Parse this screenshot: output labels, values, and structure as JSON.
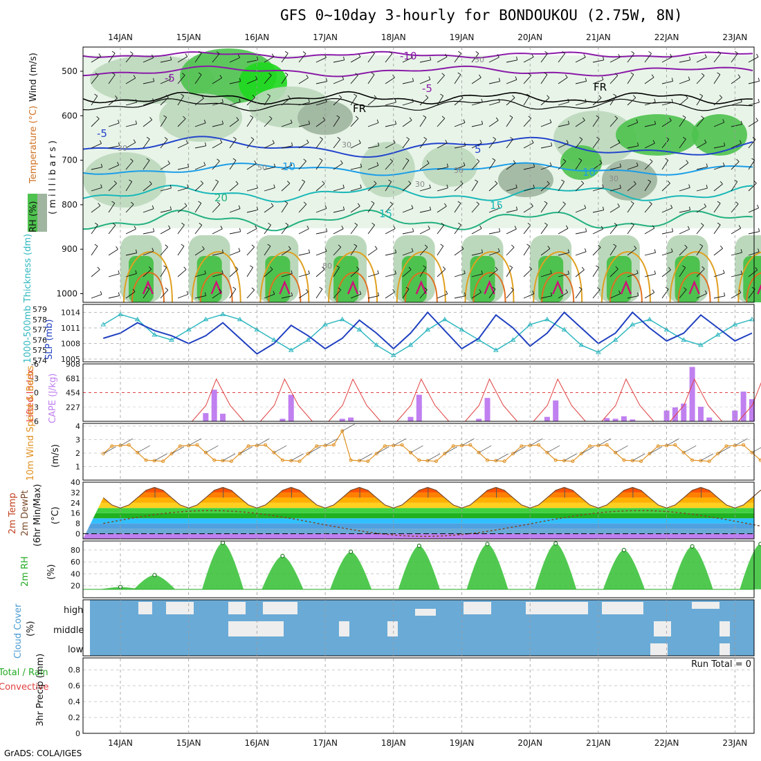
{
  "title": "GFS 0~10day 3-hourly for BONDOUKOU (2.75W, 8N)",
  "footer": "GrADS: COLA/IGES",
  "dates": [
    "14JAN",
    "15JAN",
    "16JAN",
    "17JAN",
    "18JAN",
    "19JAN",
    "20JAN",
    "21JAN",
    "22JAN",
    "23JAN"
  ],
  "colors": {
    "rh_light": "#e8f4e8",
    "rh_mid": "#bcd8bc",
    "rh_gray": "#9fb59f",
    "rh_dark": "#4ec24e",
    "rh_max": "#1ed81e",
    "temp_m10": "#8a1aa8",
    "temp_5": "#2244cc",
    "temp_10": "#1a9de8",
    "temp_15": "#18b8b8",
    "temp_20": "#22b080",
    "temp_25": "#e0a020",
    "temp_30": "#e07020",
    "temp_35": "#d0107a",
    "slp": "#2040c0",
    "thick": "#30b8c0",
    "cape": "#c080f0",
    "li": "#e04040",
    "wind10": "#e09020",
    "temp2m": "#7a4a2a",
    "rh2m": "#22aa22",
    "cloud": "#6aaad6"
  },
  "panels": {
    "upper": {
      "ylabel_rh": "RH (%)",
      "ylabel_temp": "Temperature (°C)",
      "ylabel_wind": "Wind (m/s)",
      "ylabel_mb": "( m i l l i b a r s )",
      "yticks": [
        "500",
        "600",
        "700",
        "800",
        "900",
        "1000"
      ],
      "contour_labels": [
        {
          "text": "-10",
          "color": "temp_m10"
        },
        {
          "text": "-5",
          "color": "temp_m10"
        },
        {
          "text": "-5",
          "color": "temp_m10"
        },
        {
          "text": "FR",
          "color": "black"
        },
        {
          "text": "FR",
          "color": "black"
        },
        {
          "text": "-5",
          "color": "temp_5"
        },
        {
          "text": "5",
          "color": "temp_5"
        },
        {
          "text": "10",
          "color": "temp_10"
        },
        {
          "text": "10",
          "color": "temp_10"
        },
        {
          "text": "15",
          "color": "temp_15"
        },
        {
          "text": "15",
          "color": "temp_15"
        },
        {
          "text": "20",
          "color": "temp_20"
        },
        {
          "text": "30",
          "color": "gray"
        },
        {
          "text": "30",
          "color": "gray"
        },
        {
          "text": "30",
          "color": "gray"
        },
        {
          "text": "30",
          "color": "gray"
        },
        {
          "text": "50",
          "color": "gray"
        },
        {
          "text": "50",
          "color": "gray"
        },
        {
          "text": "30",
          "color": "gray"
        },
        {
          "text": "80",
          "color": "gray"
        }
      ]
    },
    "slp": {
      "ylabel_thick": "1000-500mb Thickness (dm)",
      "ylabel_slp": "SLP (mb)",
      "yticks_thick": [
        "579",
        "578",
        "577",
        "576",
        "575",
        "574"
      ],
      "yticks_slp": [
        "1014",
        "1011",
        "1008",
        "1005"
      ]
    },
    "cape": {
      "ylabel_li": "Lifted Index",
      "ylabel_cape": "CAPE (J/kg)",
      "yticks_li": [
        "-6",
        "-3",
        "0",
        "3",
        "6"
      ],
      "yticks_cape": [
        "908",
        "681",
        "454",
        "227"
      ]
    },
    "wind10": {
      "ylabel": "10m Wind Speed & Barbs",
      "ylabel_unit": "(m/s)",
      "yticks": [
        "4",
        "3",
        "2",
        "1"
      ]
    },
    "temp2m": {
      "ylabel1": "2m Temp",
      "ylabel2": "2m DewPt",
      "ylabel3": "(6hr Min/Max)",
      "ylabel_unit": "(°C)",
      "yticks": [
        "40",
        "32",
        "24",
        "16",
        "8",
        "0"
      ]
    },
    "rh2m": {
      "ylabel": "2m RH",
      "ylabel_unit": "(%)",
      "yticks": [
        "80",
        "60",
        "40",
        "20"
      ]
    },
    "cloud": {
      "ylabel": "Cloud Cover",
      "ylabel_unit": "(%)",
      "levels": [
        "high",
        "middle",
        "low"
      ]
    },
    "precip": {
      "ylabel1": "Total / Rain",
      "ylabel2": "Convective",
      "ylabel3": "3hr Precip (mm)",
      "yticks": [
        "0.8",
        "0.6",
        "0.4",
        "0.2",
        "0"
      ],
      "run_total": "Run Total = 0"
    }
  },
  "chart_data": [
    {
      "type": "line",
      "title": "Sea level pressure & 1000-500mb thickness",
      "x": [
        "13JAN18",
        "14JAN00",
        "14JAN06",
        "14JAN12",
        "14JAN18",
        "15JAN00",
        "15JAN06",
        "15JAN12",
        "15JAN18",
        "16JAN00",
        "16JAN06",
        "16JAN12",
        "16JAN18",
        "17JAN00",
        "17JAN06",
        "17JAN12",
        "17JAN18",
        "18JAN00",
        "18JAN06",
        "18JAN12",
        "18JAN18",
        "19JAN00",
        "19JAN06",
        "19JAN12",
        "19JAN18",
        "20JAN00",
        "20JAN06",
        "20JAN12",
        "20JAN18",
        "21JAN00",
        "21JAN06",
        "21JAN12",
        "21JAN18",
        "22JAN00",
        "22JAN06",
        "22JAN12",
        "22JAN18",
        "23JAN00",
        "23JAN06"
      ],
      "series": [
        {
          "name": "SLP (mb)",
          "values": [
            1009,
            1010,
            1012,
            1010.5,
            1009.5,
            1008,
            1009.5,
            1012,
            1009,
            1006,
            1008,
            1011.5,
            1009.5,
            1007,
            1009,
            1012.5,
            1010,
            1007,
            1010,
            1014,
            1010.5,
            1007,
            1009,
            1013.5,
            1011,
            1007.5,
            1010,
            1014,
            1011,
            1008,
            1010,
            1014,
            1011,
            1008.5,
            1010,
            1013.5,
            1011,
            1008.5,
            1010
          ]
        },
        {
          "name": "1000-500mb Thickness (dm)",
          "values": [
            577.5,
            578.5,
            578,
            576.5,
            576,
            577,
            578,
            578.5,
            578,
            577,
            576,
            575,
            576,
            577.5,
            578,
            577,
            575.5,
            574.5,
            575.5,
            577,
            578,
            577,
            576,
            575,
            576,
            577.5,
            578,
            577,
            575.5,
            574.8,
            576,
            577.5,
            578,
            577,
            576,
            575.5,
            576.5,
            577.5,
            578
          ]
        }
      ]
    },
    {
      "type": "bar",
      "title": "CAPE & Lifted Index",
      "x": [
        "15JAN06",
        "15JAN09",
        "15JAN12",
        "16JAN09",
        "16JAN12",
        "17JAN06",
        "17JAN09",
        "18JAN06",
        "18JAN09",
        "19JAN06",
        "19JAN09",
        "20JAN06",
        "20JAN09",
        "21JAN03",
        "21JAN06",
        "21JAN09",
        "21JAN12",
        "22JAN00",
        "22JAN03",
        "22JAN06",
        "22JAN09",
        "22JAN12",
        "22JAN15",
        "23JAN00",
        "23JAN03",
        "23JAN06"
      ],
      "series": [
        {
          "name": "CAPE (J/kg)",
          "values": [
            130,
            500,
            120,
            40,
            420,
            40,
            60,
            70,
            420,
            40,
            370,
            70,
            330,
            50,
            40,
            80,
            30,
            170,
            220,
            280,
            860,
            230,
            60,
            170,
            470,
            350
          ]
        }
      ]
    },
    {
      "type": "line",
      "title": "2m RH",
      "x": [
        "14JAN00",
        "14JAN12",
        "15JAN12",
        "16JAN09",
        "17JAN09",
        "18JAN09",
        "19JAN09",
        "20JAN09",
        "21JAN09",
        "22JAN09",
        "23JAN09"
      ],
      "series": [
        {
          "name": "2m RH (%)",
          "values": [
            18,
            38,
            92,
            70,
            77,
            87,
            90,
            91,
            80,
            86,
            90
          ]
        }
      ]
    }
  ]
}
